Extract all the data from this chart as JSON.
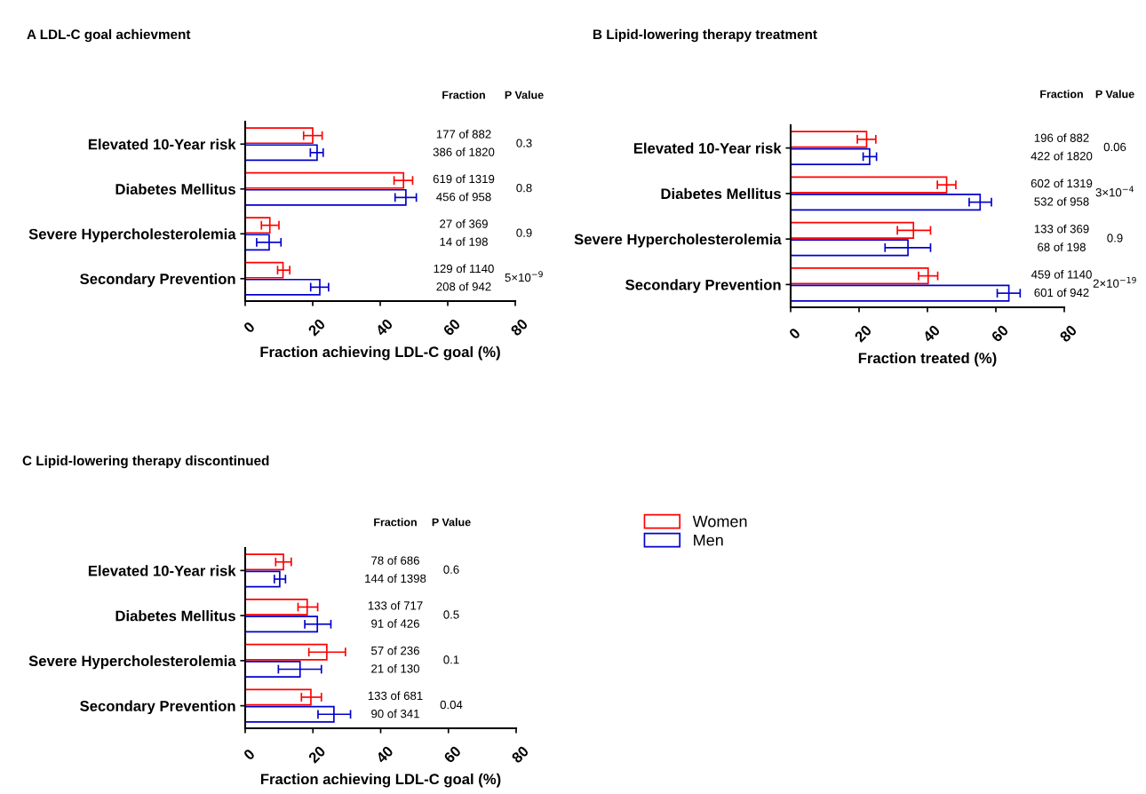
{
  "chart_data": [
    {
      "type": "bar",
      "orientation": "horizontal",
      "title": "A LDL-C goal achievment",
      "xlabel": "Fraction achieving LDL-C goal (%)",
      "categories": [
        "Elevated 10-Year risk",
        "Diabetes Mellitus",
        "Severe Hypercholesterolemia",
        "Secondary Prevention"
      ],
      "series": [
        {
          "color": "#ff0000",
          "values": [
            20.0,
            46.9,
            7.3,
            11.2
          ],
          "errors": [
            [
              17.3,
              22.8
            ],
            [
              44.1,
              49.6
            ],
            [
              4.8,
              10.0
            ],
            [
              9.6,
              13.2
            ]
          ]
        },
        {
          "color": "#0000cc",
          "values": [
            21.3,
            47.6,
            7.1,
            22.1
          ],
          "errors": [
            [
              19.3,
              23.1
            ],
            [
              44.4,
              50.7
            ],
            [
              3.4,
              10.6
            ],
            [
              19.4,
              24.7
            ]
          ]
        }
      ],
      "xlim": [
        0,
        80
      ],
      "xticks": [
        0,
        20,
        40,
        60,
        80
      ],
      "annotations": [
        "Fraction",
        "P Value",
        "177 of 882",
        "386 of 1820",
        "0.3",
        "619 of 1319",
        "456 of 958",
        "0.8",
        "27 of 369",
        "14 of 198",
        "0.9",
        "129 of 1140",
        "208 of 942",
        "5×10$^{−9}$"
      ]
    },
    {
      "type": "bar",
      "orientation": "horizontal",
      "title": "B Lipid-lowering therapy treatment",
      "xlabel": "Fraction treated (%)",
      "categories": [
        "Elevated 10-Year risk",
        "Diabetes Mellitus",
        "Severe Hypercholesterolemia",
        "Secondary Prevention"
      ],
      "series": [
        {
          "color": "#ff0000",
          "values": [
            22.2,
            45.6,
            35.9,
            40.2
          ],
          "errors": [
            [
              19.5,
              24.9
            ],
            [
              42.9,
              48.3
            ],
            [
              31.2,
              40.9
            ],
            [
              37.4,
              43.0
            ]
          ]
        },
        {
          "color": "#0000cc",
          "values": [
            23.1,
            55.4,
            34.3,
            63.8
          ],
          "errors": [
            [
              21.2,
              25.1
            ],
            [
              52.2,
              58.7
            ],
            [
              27.6,
              40.9
            ],
            [
              60.4,
              67.1
            ]
          ]
        }
      ],
      "xlim": [
        0,
        80
      ],
      "xticks": [
        0,
        20,
        40,
        60,
        80
      ],
      "annotations": [
        "Fraction",
        "P Value",
        "196 of 882",
        "422 of 1820",
        "0.06",
        "602 of 1319",
        "532 of 958",
        "3×10$^{−4}$",
        "133 of 369",
        "68 of 198",
        "0.9",
        "459 of 1140",
        "601 of 942",
        "2×10$^{−19}$"
      ]
    },
    {
      "type": "bar",
      "orientation": "horizontal",
      "title": "C Lipid-lowering therapy discontinued",
      "xlabel": "Fraction achieving LDL-C goal (%)",
      "categories": [
        "Elevated 10-Year risk",
        "Diabetes Mellitus",
        "Severe Hypercholesterolemia",
        "Secondary Prevention"
      ],
      "series": [
        {
          "name": "Women",
          "color": "#ff0000",
          "values": [
            11.3,
            18.3,
            24.1,
            19.4
          ],
          "errors": [
            [
              9.0,
              13.6
            ],
            [
              15.6,
              21.4
            ],
            [
              18.8,
              29.6
            ],
            [
              16.6,
              22.5
            ]
          ]
        },
        {
          "name": "Men",
          "color": "#0000cc",
          "values": [
            10.2,
            21.3,
            16.2,
            26.2
          ],
          "errors": [
            [
              8.6,
              11.9
            ],
            [
              17.6,
              25.3
            ],
            [
              9.8,
              22.5
            ],
            [
              21.5,
              31.1
            ]
          ]
        }
      ],
      "xlim": [
        0,
        80
      ],
      "xticks": [
        0,
        20,
        40,
        60,
        80
      ],
      "legend": "right",
      "annotations": [
        "Fraction",
        "P Value",
        "78 of 686",
        "144 of 1398",
        "0.6",
        "133 of 717",
        "91 of 426",
        "0.5",
        "57 of 236",
        "21 of 130",
        "0.1",
        "133 of 681",
        "90 of 341",
        "0.04"
      ]
    }
  ]
}
